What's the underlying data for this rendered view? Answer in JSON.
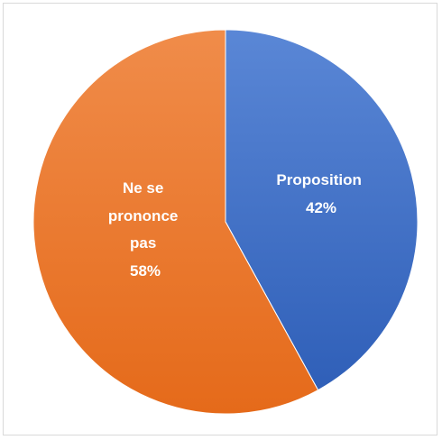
{
  "chart_data": {
    "type": "pie",
    "slices": [
      {
        "label": "Proposition",
        "value": 42,
        "display": "42%",
        "color": "#4472c4"
      },
      {
        "label": "Ne se prononce pas",
        "value": 58,
        "display": "58%",
        "color": "#ed7d31"
      }
    ],
    "start": "12 o'clock",
    "direction": "clockwise",
    "data_labels": "inside, white, bold, category name + percent",
    "legend": "none"
  }
}
